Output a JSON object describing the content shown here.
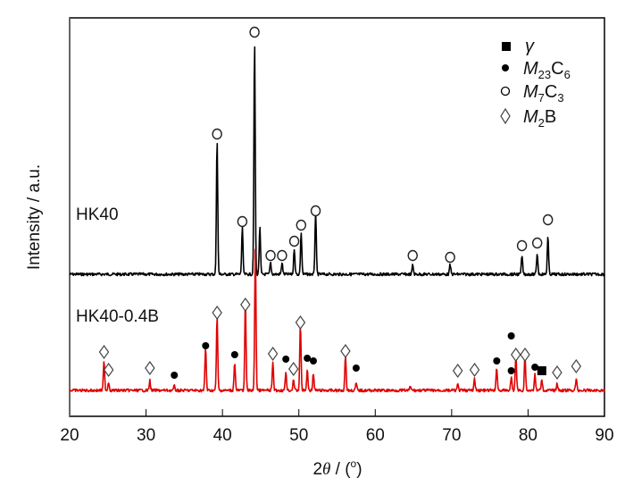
{
  "chart_data": {
    "type": "line",
    "title": "",
    "xlabel": "2θ / (°)",
    "ylabel": "Intensity / a.u.",
    "xlim": [
      20,
      90
    ],
    "xticks": [
      20,
      30,
      40,
      50,
      60,
      70,
      80,
      90
    ],
    "yticks": [],
    "grid": false,
    "legend_position": "top-right inside",
    "legend": [
      {
        "symbol": "filled-square",
        "label": "γ"
      },
      {
        "symbol": "filled-circle",
        "label": "M23C6"
      },
      {
        "symbol": "open-circle",
        "label": "M7C3"
      },
      {
        "symbol": "open-diamond",
        "label": "M2B"
      }
    ],
    "series": [
      {
        "name": "HK40",
        "color": "#000000",
        "baseline_offset": 1.0,
        "peaks": [
          {
            "two_theta": 39.3,
            "rel_intensity": 0.58,
            "phase": "M7C3"
          },
          {
            "two_theta": 42.6,
            "rel_intensity": 0.2,
            "phase": "M7C3"
          },
          {
            "two_theta": 44.2,
            "rel_intensity": 1.0,
            "phase": "M7C3"
          },
          {
            "two_theta": 44.9,
            "rel_intensity": 0.2,
            "phase": null
          },
          {
            "two_theta": 46.3,
            "rel_intensity": 0.05,
            "phase": "M7C3"
          },
          {
            "two_theta": 47.8,
            "rel_intensity": 0.05,
            "phase": "M7C3"
          },
          {
            "two_theta": 49.4,
            "rel_intensity": 0.11,
            "phase": "M7C3"
          },
          {
            "two_theta": 50.3,
            "rel_intensity": 0.18,
            "phase": "M7C3"
          },
          {
            "two_theta": 52.2,
            "rel_intensity": 0.27,
            "phase": "M7C3"
          },
          {
            "two_theta": 64.9,
            "rel_intensity": 0.04,
            "phase": "M7C3"
          },
          {
            "two_theta": 69.8,
            "rel_intensity": 0.04,
            "phase": "M7C3"
          },
          {
            "two_theta": 79.2,
            "rel_intensity": 0.08,
            "phase": "M7C3"
          },
          {
            "two_theta": 81.2,
            "rel_intensity": 0.09,
            "phase": "M7C3"
          },
          {
            "two_theta": 82.6,
            "rel_intensity": 0.16,
            "phase": "M7C3"
          }
        ]
      },
      {
        "name": "HK40-0.4B",
        "color": "#e00000",
        "baseline_offset": 0.0,
        "peaks": [
          {
            "two_theta": 24.5,
            "rel_intensity": 0.2,
            "phase": "M2B"
          },
          {
            "two_theta": 25.1,
            "rel_intensity": 0.06,
            "phase": "M2B"
          },
          {
            "two_theta": 30.5,
            "rel_intensity": 0.07,
            "phase": "M2B"
          },
          {
            "two_theta": 33.7,
            "rel_intensity": 0.03,
            "phase": "M23C6"
          },
          {
            "two_theta": 37.8,
            "rel_intensity": 0.3,
            "phase": "M23C6"
          },
          {
            "two_theta": 39.3,
            "rel_intensity": 0.52,
            "phase": "M2B"
          },
          {
            "two_theta": 41.6,
            "rel_intensity": 0.2,
            "phase": "M23C6"
          },
          {
            "two_theta": 43.0,
            "rel_intensity": 0.62,
            "phase": "M2B"
          },
          {
            "two_theta": 44.3,
            "rel_intensity": 1.0,
            "phase": null
          },
          {
            "two_theta": 46.6,
            "rel_intensity": 0.19,
            "phase": "M2B"
          },
          {
            "two_theta": 48.3,
            "rel_intensity": 0.13,
            "phase": "M23C6"
          },
          {
            "two_theta": 49.3,
            "rel_intensity": 0.08,
            "phase": "M2B"
          },
          {
            "two_theta": 50.2,
            "rel_intensity": 0.46,
            "phase": "M2B"
          },
          {
            "two_theta": 51.1,
            "rel_intensity": 0.14,
            "phase": "M23C6"
          },
          {
            "two_theta": 51.9,
            "rel_intensity": 0.12,
            "phase": "M23C6"
          },
          {
            "two_theta": 56.1,
            "rel_intensity": 0.25,
            "phase": "M2B"
          },
          {
            "two_theta": 57.5,
            "rel_intensity": 0.05,
            "phase": "M23C6"
          },
          {
            "two_theta": 64.6,
            "rel_intensity": 0.03,
            "phase": null
          },
          {
            "two_theta": 70.8,
            "rel_intensity": 0.04,
            "phase": "M2B"
          },
          {
            "two_theta": 73.0,
            "rel_intensity": 0.08,
            "phase": "M2B"
          },
          {
            "two_theta": 75.9,
            "rel_intensity": 0.16,
            "phase": "M23C6"
          },
          {
            "two_theta": 77.8,
            "rel_intensity": 0.09,
            "phase": "M23C6"
          },
          {
            "two_theta": 78.4,
            "rel_intensity": 0.25,
            "phase": "M2B"
          },
          {
            "two_theta": 79.6,
            "rel_intensity": 0.25,
            "phase": "M2B"
          },
          {
            "two_theta": 80.9,
            "rel_intensity": 0.11,
            "phase": "M23C6"
          },
          {
            "two_theta": 81.8,
            "rel_intensity": 0.08,
            "phase": "γ"
          },
          {
            "two_theta": 83.8,
            "rel_intensity": 0.05,
            "phase": "M2B"
          },
          {
            "two_theta": 86.3,
            "rel_intensity": 0.08,
            "phase": "M2B"
          }
        ]
      }
    ],
    "annotations": [
      {
        "text": "HK40",
        "position": "left, above black trace"
      },
      {
        "text": "HK40-0.4B",
        "position": "left, above red trace"
      }
    ]
  },
  "labels": {
    "ylabel": "Intensity / a.u.",
    "xlabel_prefix": "2",
    "xlabel_theta": "θ",
    "xlabel_suffix": " / (",
    "xlabel_degree": "o",
    "xlabel_close": ")",
    "sample1": "HK40",
    "sample2": "HK40-0.4B",
    "xticks": [
      "20",
      "30",
      "40",
      "50",
      "60",
      "70",
      "80",
      "90"
    ],
    "legend": {
      "gamma": "γ",
      "m23c6_m": "M",
      "m23c6_sub1": "23",
      "m23c6_c": "C",
      "m23c6_sub2": "6",
      "m7c3_m": "M",
      "m7c3_sub1": "7",
      "m7c3_c": "C",
      "m7c3_sub2": "3",
      "m2b_m": "M",
      "m2b_sub1": "2",
      "m2b_b": "B"
    }
  },
  "colors": {
    "hk40": "#000000",
    "hk40_04b": "#e00000",
    "axis": "#000000"
  }
}
